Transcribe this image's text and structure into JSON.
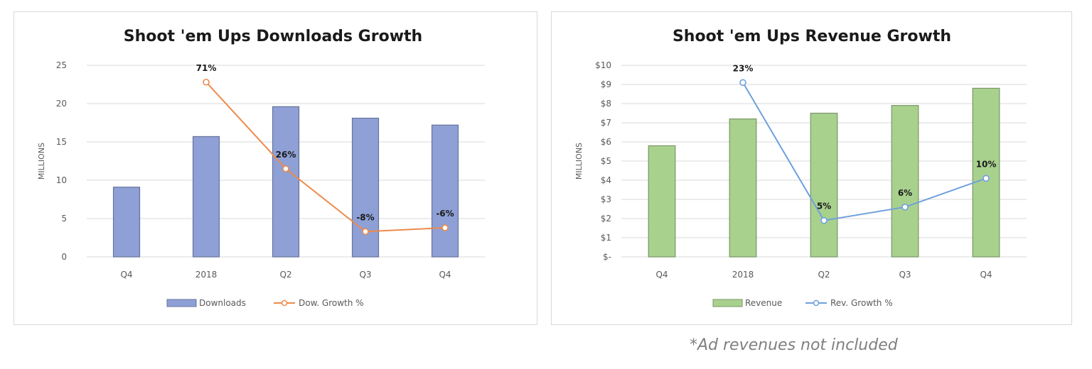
{
  "chart_data": [
    {
      "type": "bar",
      "title": "Shoot 'em Ups Downloads Growth",
      "ylabel": "MILLIONS",
      "xlabel": "",
      "categories": [
        "Q4",
        "2018",
        "Q2",
        "Q3",
        "Q4"
      ],
      "ylim": [
        0,
        25
      ],
      "yticks": [
        0,
        5,
        10,
        15,
        20,
        25
      ],
      "ytick_labels": [
        "0",
        "5",
        "10",
        "15",
        "20",
        "25"
      ],
      "grid": true,
      "legend_position": "bottom",
      "series": [
        {
          "name": "Downloads",
          "kind": "bar",
          "color": "#8ea0d6",
          "values": [
            9.1,
            15.7,
            19.6,
            18.1,
            17.2
          ]
        },
        {
          "name": "Dow. Growth %",
          "kind": "line",
          "color": "#ed8a4c",
          "values": [
            null,
            22.8,
            11.5,
            3.3,
            3.8
          ],
          "data_labels": [
            null,
            "71%",
            "26%",
            "-8%",
            "-6%"
          ]
        }
      ]
    },
    {
      "type": "bar",
      "title": "Shoot 'em Ups Revenue Growth",
      "ylabel": "MILLIONS",
      "xlabel": "",
      "categories": [
        "Q4",
        "2018",
        "Q2",
        "Q3",
        "Q4"
      ],
      "ylim": [
        0,
        10
      ],
      "yticks": [
        0,
        1,
        2,
        3,
        4,
        5,
        6,
        7,
        8,
        9,
        10
      ],
      "ytick_labels": [
        "$-",
        "$1",
        "$2",
        "$3",
        "$4",
        "$5",
        "$6",
        "$7",
        "$8",
        "$9",
        "$10"
      ],
      "grid": true,
      "legend_position": "bottom",
      "series": [
        {
          "name": "Revenue",
          "kind": "bar",
          "color": "#a9d18e",
          "values": [
            5.8,
            7.2,
            7.5,
            7.9,
            8.8
          ]
        },
        {
          "name": "Rev. Growth %",
          "kind": "line",
          "color": "#6fa0dc",
          "values": [
            null,
            9.1,
            1.9,
            2.6,
            4.1
          ],
          "data_labels": [
            null,
            "23%",
            "5%",
            "6%",
            "10%"
          ]
        }
      ]
    }
  ],
  "footnote": "*Ad revenues not included"
}
